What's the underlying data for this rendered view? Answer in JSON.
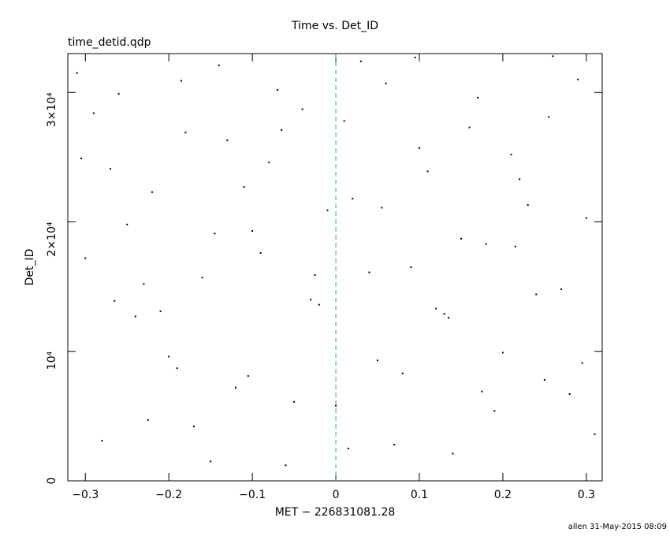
{
  "chart_data": {
    "type": "scatter",
    "title": "Time vs. Det_ID",
    "subtitle": "time_detid.qdp",
    "x_label": "MET − 226831081.28",
    "y_label": "Det_ID",
    "footer": "allen 31-May-2015 08:09",
    "color": "#000000",
    "xlim": [
      -0.321,
      0.319
    ],
    "ylim": [
      0,
      33000
    ],
    "xticks": [
      {
        "value": -0.3,
        "label": "−0.3"
      },
      {
        "value": -0.2,
        "label": "−0.2"
      },
      {
        "value": -0.1,
        "label": "−0.1"
      },
      0,
      0.1,
      0.2,
      0.3
    ],
    "yticks": [
      0,
      {
        "value": 10000,
        "label": "10⁴"
      },
      {
        "value": 20000,
        "label": "2×10⁴"
      },
      {
        "value": 30000,
        "label": "3×10⁴"
      }
    ],
    "vline": 0,
    "vline_color": "#1aa3b8",
    "x": [
      -0.31,
      -0.29,
      -0.27,
      -0.25,
      -0.23,
      -0.21,
      -0.19,
      -0.17,
      -0.15,
      -0.13,
      -0.11,
      -0.09,
      -0.07,
      -0.05,
      -0.03,
      -0.01,
      0.01,
      0.03,
      0.05,
      0.07,
      0.09,
      0.11,
      0.13,
      0.15,
      0.17,
      0.19,
      0.21,
      0.23,
      0.25,
      0.27,
      0.29,
      0.31,
      -0.3,
      -0.28,
      -0.26,
      -0.24,
      -0.22,
      -0.2,
      -0.18,
      -0.16,
      -0.14,
      -0.12,
      -0.1,
      -0.08,
      -0.06,
      -0.04,
      -0.02,
      0.0,
      0.02,
      0.04,
      0.06,
      0.08,
      0.1,
      0.12,
      0.14,
      0.16,
      0.18,
      0.2,
      0.22,
      0.24,
      0.26,
      0.28,
      0.3,
      -0.305,
      -0.265,
      -0.225,
      -0.185,
      -0.145,
      -0.105,
      -0.065,
      -0.025,
      0.015,
      0.055,
      0.095,
      0.135,
      0.175,
      0.215,
      0.255,
      0.295
    ],
    "values": [
      31500,
      28400,
      24100,
      19800,
      15200,
      13100,
      8700,
      4200,
      1500,
      26300,
      22700,
      17600,
      30200,
      6100,
      14000,
      20900,
      27800,
      32400,
      9300,
      2800,
      16500,
      23900,
      12900,
      18700,
      29600,
      5400,
      25200,
      21300,
      7800,
      14800,
      31000,
      3600,
      17200,
      3100,
      29900,
      12700,
      22300,
      9600,
      26900,
      15700,
      32100,
      7200,
      19300,
      24600,
      1200,
      28700,
      13600,
      5800,
      21800,
      16100,
      30700,
      8300,
      25700,
      13300,
      2100,
      27300,
      18300,
      9900,
      23300,
      14400,
      32800,
      6700,
      20300,
      24900,
      13900,
      4700,
      30900,
      19100,
      8100,
      27100,
      15900,
      2500,
      21100,
      32700,
      12600,
      6900,
      18100,
      28100,
      9100
    ]
  }
}
